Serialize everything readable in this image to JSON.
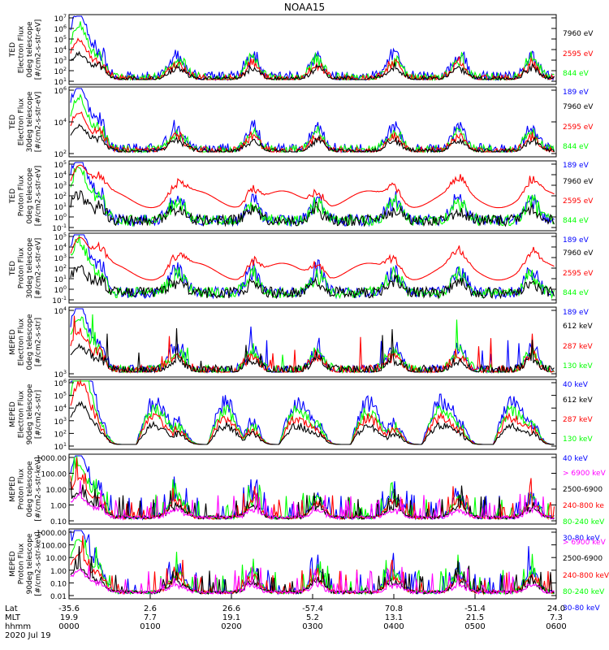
{
  "title": "NOAA15",
  "colors": {
    "black": "#000000",
    "blue": "#0000ff",
    "red": "#ff0000",
    "green": "#00ff00",
    "magenta": "#ff00ff"
  },
  "footer": {
    "row_labels": [
      "Lat",
      "MLT",
      "hhmm",
      "2020 Jul 19"
    ],
    "lat": [
      "-35.6",
      "2.6",
      "26.6",
      "-57.4",
      "70.8",
      "-51.4",
      "24.0"
    ],
    "mlt": [
      "19.9",
      "7.7",
      "19.1",
      "5.2",
      "13.1",
      "21.5",
      "7.3"
    ],
    "hhmm": [
      "0000",
      "0100",
      "0200",
      "0300",
      "0400",
      "0500",
      "0600"
    ]
  },
  "chart_data": [
    {
      "type": "line",
      "ylabel": [
        "TED",
        "Electron Flux",
        "0deg telescope",
        "[#/cm2-s-str-eV]"
      ],
      "yscale": "log",
      "yticks": [
        "10^1",
        "10^2",
        "10^3",
        "10^4",
        "10^5",
        "10^6",
        "10^7"
      ],
      "legend": [
        {
          "label": "7960 eV",
          "color": "black"
        },
        {
          "label": "2595 eV",
          "color": "red"
        },
        {
          "label": "844 eV",
          "color": "green"
        },
        {
          "label": "189 eV",
          "color": "blue"
        }
      ]
    },
    {
      "type": "line",
      "ylabel": [
        "TED",
        "Electron Flux",
        "30deg telescope",
        "[#/cm2-s-str-eV]"
      ],
      "yscale": "log",
      "yticks": [
        "10^2",
        "10^4",
        "10^6"
      ],
      "legend": [
        {
          "label": "7960 eV",
          "color": "black"
        },
        {
          "label": "2595 eV",
          "color": "red"
        },
        {
          "label": "844 eV",
          "color": "green"
        },
        {
          "label": "189 eV",
          "color": "blue"
        }
      ]
    },
    {
      "type": "line",
      "ylabel": [
        "TED",
        "Proton Flux",
        "0deg telescope",
        "[#/cm2-s-str-eV]"
      ],
      "yscale": "log",
      "yticks": [
        "10^-1",
        "10^0",
        "10^1",
        "10^2",
        "10^3",
        "10^4",
        "10^5"
      ],
      "legend": [
        {
          "label": "7960 eV",
          "color": "black"
        },
        {
          "label": "2595 eV",
          "color": "red"
        },
        {
          "label": "844 eV",
          "color": "green"
        },
        {
          "label": "189 eV",
          "color": "blue"
        }
      ]
    },
    {
      "type": "line",
      "ylabel": [
        "TED",
        "Proton Flux",
        "30deg telescope",
        "[#/cm2-s-str-eV]"
      ],
      "yscale": "log",
      "yticks": [
        "10^-1",
        "10^0",
        "10^1",
        "10^2",
        "10^3",
        "10^4",
        "10^5"
      ],
      "legend": [
        {
          "label": "7960 eV",
          "color": "black"
        },
        {
          "label": "2595 eV",
          "color": "red"
        },
        {
          "label": "844 eV",
          "color": "green"
        },
        {
          "label": "189 eV",
          "color": "blue"
        }
      ]
    },
    {
      "type": "line",
      "ylabel": [
        "MEPED",
        "Electron Flux",
        "0deg telescope",
        "[#/cm2-s-str]"
      ],
      "yscale": "log",
      "yticks": [
        "10^3",
        "10^4"
      ],
      "legend": [
        {
          "label": "612 keV",
          "color": "black"
        },
        {
          "label": "287 keV",
          "color": "red"
        },
        {
          "label": "130 keV",
          "color": "green"
        },
        {
          "label": "40 keV",
          "color": "blue"
        }
      ]
    },
    {
      "type": "line",
      "ylabel": [
        "MEPED",
        "Electron Flux",
        "90deg telescope",
        "[#/cm2-s-str]"
      ],
      "yscale": "log",
      "yticks": [
        "10^1",
        "10^2",
        "10^3",
        "10^4",
        "10^5",
        "10^6"
      ],
      "legend": [
        {
          "label": "612 keV",
          "color": "black"
        },
        {
          "label": "287 keV",
          "color": "red"
        },
        {
          "label": "130 keV",
          "color": "green"
        },
        {
          "label": "40 keV",
          "color": "blue"
        }
      ]
    },
    {
      "type": "line",
      "ylabel": [
        "MEPED",
        "Proton Flux",
        "0deg telescope",
        "[#/cm2-s-str-keV]"
      ],
      "yscale": "log",
      "yticks": [
        "0.10",
        "1.00",
        "10.00",
        "100.00",
        "1000.00"
      ],
      "legend": [
        {
          "label": "> 6900 keV",
          "color": "magenta"
        },
        {
          "label": "2500-6900",
          "color": "black"
        },
        {
          "label": "240-800 ke",
          "color": "red"
        },
        {
          "label": "80-240 keV",
          "color": "green"
        },
        {
          "label": "30-80 keV",
          "color": "blue"
        }
      ]
    },
    {
      "type": "line",
      "ylabel": [
        "MEPED",
        "Proton Flux",
        "90deg telescope",
        "[#/cm2-s-str-keV]"
      ],
      "yscale": "log",
      "yticks": [
        "0.01",
        "0.10",
        "1.00",
        "10.00",
        "100.00",
        "1000.00"
      ],
      "legend": [
        {
          "label": "> 6900 keV",
          "color": "magenta"
        },
        {
          "label": "2500-6900",
          "color": "black"
        },
        {
          "label": "240-800 keV",
          "color": "red"
        },
        {
          "label": "80-240 keV",
          "color": "green"
        },
        {
          "label": "30-80 keV",
          "color": "blue"
        }
      ]
    }
  ]
}
